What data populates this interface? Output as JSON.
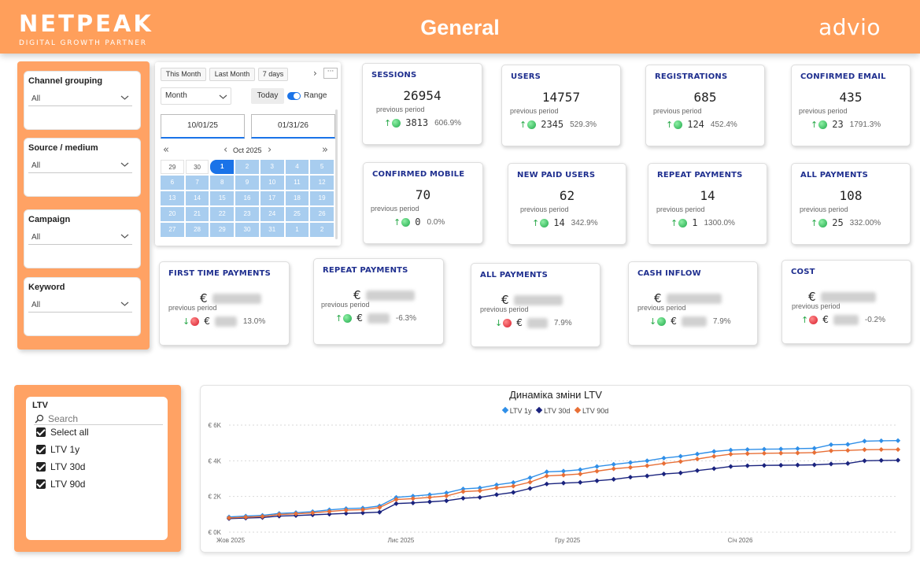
{
  "header": {
    "logo": "NETPEAK",
    "logo_tagline": "DIGITAL GROWTH PARTNER",
    "title": "General",
    "brand_right": "advio"
  },
  "filters": [
    {
      "title": "Channel grouping",
      "value": "All"
    },
    {
      "title": "Source / medium",
      "value": "All"
    },
    {
      "title": "Campaign",
      "value": "All"
    },
    {
      "title": "Keyword",
      "value": "All"
    }
  ],
  "datepicker": {
    "presets": [
      "This Month",
      "Last Month",
      "7 days"
    ],
    "more": "···",
    "granularity": "Month",
    "today_label": "Today",
    "range_label": "Range",
    "start_date": "10/01/25",
    "end_date": "01/31/26",
    "month_label": "Oct 2025",
    "days": [
      "29",
      "30",
      "1",
      "2",
      "3",
      "4",
      "5",
      "6",
      "7",
      "8",
      "9",
      "10",
      "11",
      "12",
      "13",
      "14",
      "15",
      "16",
      "17",
      "18",
      "19",
      "20",
      "21",
      "22",
      "23",
      "24",
      "25",
      "26",
      "27",
      "28",
      "29",
      "30",
      "31",
      "1",
      "2"
    ]
  },
  "kpi_cards": [
    {
      "title": "SESSIONS",
      "value": "26954",
      "prev_label": "previous period",
      "delta": "3813",
      "pct": "606.9%",
      "trend": "up",
      "status": "green"
    },
    {
      "title": "USERS",
      "value": "14757",
      "prev_label": "previous period",
      "delta": "2345",
      "pct": "529.3%",
      "trend": "up",
      "status": "green"
    },
    {
      "title": "REGISTRATIONS",
      "value": "685",
      "prev_label": "previous period",
      "delta": "124",
      "pct": "452.4%",
      "trend": "up",
      "status": "green"
    },
    {
      "title": "CONFIRMED EMAIL",
      "value": "435",
      "prev_label": "previous period",
      "delta": "23",
      "pct": "1791.3%",
      "trend": "up",
      "status": "green"
    },
    {
      "title": "CONFIRMED MOBILE",
      "value": "70",
      "prev_label": "previous period",
      "delta": "0",
      "pct": "0.0%",
      "trend": "up",
      "status": "green"
    },
    {
      "title": "NEW PAID USERS",
      "value": "62",
      "prev_label": "previous period",
      "delta": "14",
      "pct": "342.9%",
      "trend": "up",
      "status": "green"
    },
    {
      "title": "REPEAT PAYMENTS",
      "value": "14",
      "prev_label": "previous period",
      "delta": "1",
      "pct": "1300.0%",
      "trend": "up",
      "status": "green"
    },
    {
      "title": "ALL PAYMENTS",
      "value": "108",
      "prev_label": "previous period",
      "delta": "25",
      "pct": "332.00%",
      "trend": "up",
      "status": "green"
    }
  ],
  "money_cards": [
    {
      "title": "FIRST TIME PAYMENTS",
      "currency": "€",
      "prev_label": "previous period",
      "pct": "13.0%",
      "trend": "down",
      "status": "red"
    },
    {
      "title": "REPEAT PAYMENTS",
      "currency": "€",
      "prev_label": "previous period",
      "pct": "-6.3%",
      "trend": "up",
      "status": "green"
    },
    {
      "title": "ALL PAYMENTS",
      "currency": "€",
      "prev_label": "previous period",
      "pct": "7.9%",
      "trend": "down",
      "status": "red"
    },
    {
      "title": "CASH INFLOW",
      "currency": "€",
      "prev_label": "previous period",
      "pct": "7.9%",
      "trend": "down",
      "status": "green"
    },
    {
      "title": "COST",
      "currency": "€",
      "prev_label": "previous period",
      "pct": "-0.2%",
      "trend": "up",
      "status": "red"
    }
  ],
  "ltv_slicer": {
    "title": "LTV",
    "search_placeholder": "Search",
    "options": [
      "Select all",
      "LTV 1y",
      "LTV 30d",
      "LTV 90d"
    ]
  },
  "colors": {
    "accent": "#ff9f5b",
    "title_blue": "#1f2f8f",
    "ltv_1y": "#2f8fe8",
    "ltv_30d": "#1a237e",
    "ltv_90d": "#e86f36"
  },
  "chart_data": {
    "type": "line",
    "title": "Динаміка зміни LTV",
    "legend": [
      "LTV 1y",
      "LTV 30d",
      "LTV 90d"
    ],
    "legend_position": "top-center",
    "x_ticks": [
      "Жов 2025",
      "Лис 2025",
      "Гру 2025",
      "Січ 2026"
    ],
    "y_ticks": [
      "€ 0K",
      "€ 2K",
      "€ 4K",
      "€ 6K"
    ],
    "ylim": [
      0,
      6000
    ],
    "grid": true,
    "x_days": [
      0,
      3,
      6,
      9,
      12,
      15,
      18,
      21,
      24,
      27,
      30,
      33,
      36,
      39,
      42,
      45,
      48,
      51,
      54,
      57,
      60,
      63,
      66,
      69,
      72,
      75,
      78,
      81,
      84,
      87,
      90,
      93,
      96,
      99,
      102,
      105,
      108,
      111,
      114,
      117,
      120
    ],
    "series": [
      {
        "name": "LTV 1y",
        "color": "#2f8fe8",
        "values": [
          850,
          900,
          940,
          1050,
          1090,
          1150,
          1250,
          1320,
          1350,
          1470,
          1950,
          2020,
          2100,
          2200,
          2420,
          2480,
          2650,
          2780,
          3050,
          3380,
          3420,
          3500,
          3680,
          3800,
          3900,
          4000,
          4150,
          4250,
          4380,
          4520,
          4600,
          4630,
          4650,
          4660,
          4680,
          4700,
          4900,
          4920,
          5100,
          5120,
          5130
        ]
      },
      {
        "name": "LTV 30d",
        "color": "#1a237e",
        "values": [
          760,
          790,
          820,
          900,
          930,
          970,
          1010,
          1050,
          1080,
          1120,
          1600,
          1640,
          1700,
          1760,
          1900,
          1950,
          2100,
          2230,
          2450,
          2700,
          2750,
          2790,
          2880,
          2960,
          3080,
          3150,
          3260,
          3320,
          3450,
          3560,
          3680,
          3720,
          3740,
          3750,
          3760,
          3770,
          3820,
          3850,
          4000,
          4020,
          4030
        ]
      },
      {
        "name": "LTV 90d",
        "color": "#e86f36",
        "values": [
          800,
          840,
          880,
          990,
          1030,
          1080,
          1160,
          1230,
          1260,
          1380,
          1830,
          1880,
          1950,
          2030,
          2270,
          2320,
          2480,
          2580,
          2800,
          3150,
          3200,
          3260,
          3420,
          3550,
          3630,
          3720,
          3850,
          3960,
          4100,
          4250,
          4370,
          4400,
          4420,
          4430,
          4440,
          4460,
          4560,
          4580,
          4620,
          4630,
          4630
        ]
      }
    ]
  }
}
